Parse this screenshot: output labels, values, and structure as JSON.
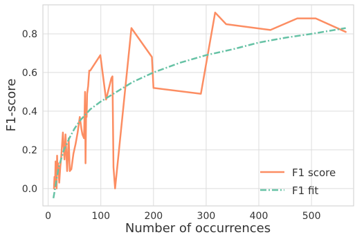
{
  "chart_data": {
    "type": "line",
    "xlabel": "Number of occurrences",
    "ylabel": "F1-score",
    "xlim": [
      -10,
      580
    ],
    "ylim": [
      -0.09,
      0.95
    ],
    "xticks": [
      0,
      100,
      200,
      300,
      400,
      500
    ],
    "yticks": [
      0.0,
      0.2,
      0.4,
      0.6,
      0.8
    ],
    "grid": true,
    "legend_position": "bottom-right",
    "colors": {
      "f1_score": "#fc8d62",
      "f1_fit": "#66c2a5"
    },
    "series": [
      {
        "name": "F1 score",
        "style": "solid",
        "x": [
          11,
          12,
          13,
          14,
          16,
          17,
          18,
          19,
          21,
          23,
          25,
          28,
          31,
          33,
          36,
          39,
          41,
          44,
          48,
          52,
          56,
          60,
          63,
          65,
          68,
          70,
          71,
          72,
          73,
          74,
          76,
          78,
          80,
          99,
          110,
          120,
          122,
          124,
          127,
          158,
          197,
          200,
          290,
          317,
          338,
          422,
          473,
          508,
          565
        ],
        "y": [
          0.0,
          0.06,
          0.01,
          0.14,
          0.0,
          0.17,
          0.09,
          0.13,
          0.03,
          0.11,
          0.17,
          0.29,
          0.15,
          0.28,
          0.09,
          0.26,
          0.09,
          0.1,
          0.18,
          0.23,
          0.29,
          0.37,
          0.31,
          0.28,
          0.26,
          0.5,
          0.13,
          0.38,
          0.37,
          0.49,
          0.53,
          0.61,
          0.61,
          0.69,
          0.46,
          0.57,
          0.58,
          0.11,
          0.0,
          0.83,
          0.68,
          0.52,
          0.49,
          0.91,
          0.85,
          0.82,
          0.88,
          0.88,
          0.81
        ]
      },
      {
        "name": "F1 fit",
        "style": "dashdot",
        "x": [
          10,
          15,
          20,
          30,
          40,
          50,
          60,
          80,
          100,
          130,
          160,
          200,
          250,
          300,
          350,
          400,
          450,
          500,
          565
        ],
        "y": [
          -0.05,
          0.03,
          0.11,
          0.2,
          0.26,
          0.31,
          0.35,
          0.41,
          0.45,
          0.5,
          0.55,
          0.6,
          0.65,
          0.69,
          0.72,
          0.755,
          0.78,
          0.8,
          0.83
        ]
      }
    ]
  }
}
